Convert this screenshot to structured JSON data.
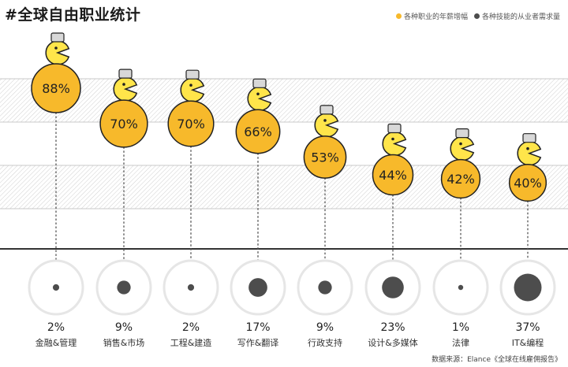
{
  "title": "#全球自由职业统计",
  "legend": [
    {
      "label": "各种职业的年薪增幅",
      "color": "#f7b92b"
    },
    {
      "label": "各种技能的从业者需求量",
      "color": "#4d4d4d"
    }
  ],
  "source": "数据来源：Elance《全球在线雇佣报告》",
  "colors": {
    "accent": "#f7b92b",
    "dark": "#4d4d4d",
    "ring": "#e6e6e6"
  },
  "chart_data": {
    "type": "bubble",
    "categories": [
      "金融&管理",
      "销售&市场",
      "工程&建造",
      "写作&翻译",
      "行政支持",
      "设计&多媒体",
      "法律",
      "IT&编程"
    ],
    "series": [
      {
        "name": "各种职业的年薪增幅",
        "values": [
          88,
          70,
          70,
          66,
          53,
          44,
          42,
          40
        ],
        "labels": [
          "88%",
          "70%",
          "70%",
          "66%",
          "53%",
          "44%",
          "42%",
          "40%"
        ]
      },
      {
        "name": "各种技能的从业者需求量",
        "values": [
          2,
          9,
          2,
          17,
          9,
          23,
          1,
          37
        ],
        "labels": [
          "2%",
          "9%",
          "2%",
          "17%",
          "9%",
          "23%",
          "1%",
          "37%"
        ]
      }
    ],
    "icons": [
      "calculator-icon",
      "clipboard-icon",
      "wrench-helmet-icon",
      "pen-helmet-icon",
      "phone-icon",
      "pencil-cap-icon",
      "gavel-wig-icon",
      "hardhat-icon"
    ]
  }
}
